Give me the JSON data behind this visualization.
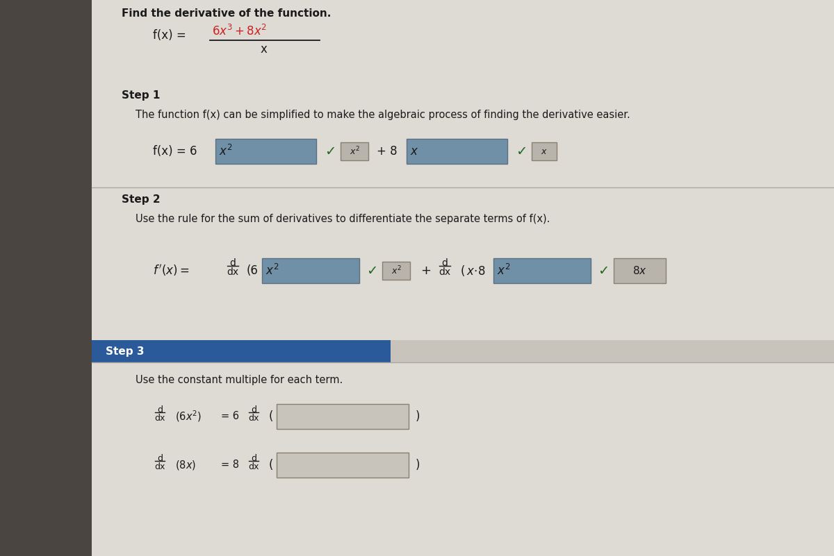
{
  "bg_left_color": "#5a5550",
  "bg_right_color": "#ccc8c0",
  "content_bg": "#dedad4",
  "title_text": "Find the derivative of the function.",
  "red_color": "#cc2222",
  "dark_text": "#1a1a1a",
  "white_text": "#ffffff",
  "box_blue": "#7090a8",
  "box_gray": "#b8b4ac",
  "box_input": "#ccc8c0",
  "box_border": "#888070",
  "check_color": "#226622",
  "divider_color": "#aaa8a0",
  "step3_bar_color": "#2a5a9a",
  "step3_bar_color2": "#c8c4bc",
  "step1_label": "Step 1",
  "step2_label": "Step 2",
  "step3_label": "Step 3",
  "step1_text": "The function f(x) can be simplified to make the algebraic process of finding the derivative easier.",
  "step2_text": "Use the rule for the sum of derivatives to differentiate the separate terms of f(x).",
  "step3_text": "Use the constant multiple for each term.",
  "check": "✓"
}
